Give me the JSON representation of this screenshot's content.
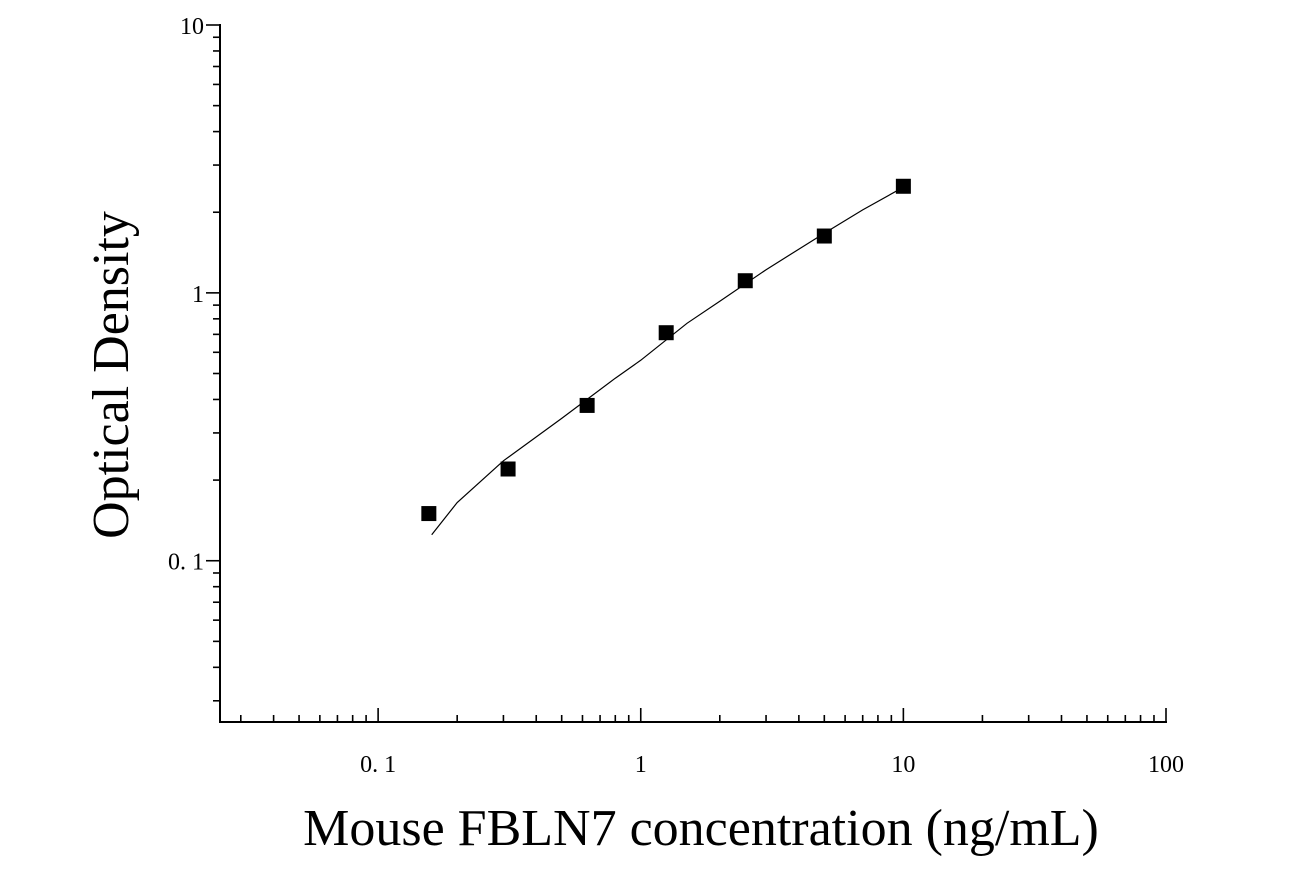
{
  "chart_data": {
    "type": "scatter",
    "title": "",
    "xlabel": "Mouse FBLN7 concentration (ng/mL)",
    "ylabel": "Optical Density",
    "xscale": "log",
    "yscale": "log",
    "xlim": [
      0.025,
      100
    ],
    "ylim": [
      0.025,
      10
    ],
    "x_ticks": [
      {
        "value": 0.1,
        "label": "0. 1"
      },
      {
        "value": 1,
        "label": "1"
      },
      {
        "value": 10,
        "label": "10"
      },
      {
        "value": 100,
        "label": "100"
      }
    ],
    "y_ticks": [
      {
        "value": 0.1,
        "label": "0. 1"
      },
      {
        "value": 1,
        "label": "1"
      },
      {
        "value": 10,
        "label": "10"
      }
    ],
    "grid": false,
    "legend": "none",
    "marker": "square",
    "color": "#000000",
    "series": [
      {
        "x": [
          0.156,
          0.3125,
          0.625,
          1.25,
          2.5,
          5,
          10
        ],
        "values": [
          0.15,
          0.22,
          0.38,
          0.71,
          1.11,
          1.63,
          2.5
        ]
      }
    ],
    "fit_curve": {
      "x": [
        0.16,
        0.2,
        0.3,
        0.5,
        0.8,
        1.0,
        1.5,
        2.0,
        3.0,
        5.0,
        7.0,
        10.0
      ],
      "values": [
        0.125,
        0.165,
        0.236,
        0.34,
        0.48,
        0.56,
        0.77,
        0.93,
        1.22,
        1.67,
        2.04,
        2.48
      ]
    }
  }
}
